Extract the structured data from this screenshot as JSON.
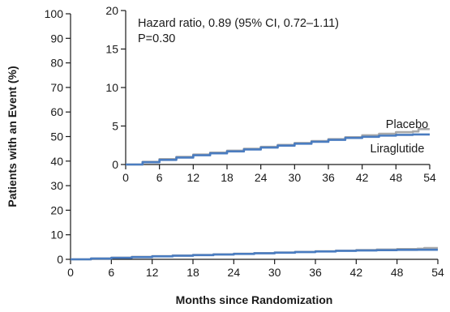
{
  "chart_data": [
    {
      "type": "line",
      "panel": "main",
      "xlabel": "Months since Randomization",
      "ylabel": "Patients with an Event (%)",
      "xlim": [
        0,
        54
      ],
      "ylim": [
        0,
        100
      ],
      "xticks": [
        0,
        6,
        12,
        18,
        24,
        30,
        36,
        42,
        48,
        54
      ],
      "yticks": [
        0,
        10,
        20,
        30,
        40,
        50,
        60,
        70,
        80,
        90,
        100
      ],
      "grid": false,
      "series": [
        {
          "color": "#a9a9a9",
          "x": [
            0,
            3,
            6,
            9,
            12,
            15,
            18,
            21,
            24,
            27,
            30,
            33,
            36,
            39,
            42,
            45,
            48,
            51,
            52,
            54
          ],
          "y": [
            0,
            0.35,
            0.7,
            1.0,
            1.3,
            1.55,
            1.8,
            2.05,
            2.3,
            2.55,
            2.8,
            3.05,
            3.3,
            3.55,
            3.8,
            4.0,
            4.2,
            4.3,
            4.6,
            4.6
          ]
        },
        {
          "color": "#4a7cc0",
          "x": [
            0,
            3,
            6,
            9,
            12,
            15,
            18,
            21,
            24,
            27,
            30,
            33,
            36,
            39,
            42,
            45,
            48,
            51,
            54
          ],
          "y": [
            0,
            0.3,
            0.6,
            0.9,
            1.2,
            1.45,
            1.7,
            1.95,
            2.2,
            2.45,
            2.7,
            2.95,
            3.2,
            3.45,
            3.6,
            3.75,
            3.85,
            3.9,
            3.9
          ]
        }
      ]
    },
    {
      "type": "line",
      "panel": "inset",
      "xlim": [
        0,
        54
      ],
      "ylim": [
        0,
        20
      ],
      "xticks": [
        0,
        6,
        12,
        18,
        24,
        30,
        36,
        42,
        48,
        54
      ],
      "yticks": [
        0,
        5,
        10,
        15,
        20
      ],
      "annotation_line1": "Hazard ratio, 0.89 (95% CI, 0.72–1.11)",
      "annotation_line2": "P=0.30",
      "series": [
        {
          "name": "Placebo",
          "color": "#a9a9a9",
          "x": [
            0,
            3,
            6,
            9,
            12,
            15,
            18,
            21,
            24,
            27,
            30,
            33,
            36,
            39,
            42,
            45,
            48,
            51,
            52,
            54
          ],
          "y": [
            0,
            0.35,
            0.7,
            1.0,
            1.3,
            1.55,
            1.8,
            2.05,
            2.3,
            2.55,
            2.8,
            3.05,
            3.3,
            3.55,
            3.8,
            4.0,
            4.2,
            4.3,
            4.6,
            4.6
          ]
        },
        {
          "name": "Liraglutide",
          "color": "#4a7cc0",
          "x": [
            0,
            3,
            6,
            9,
            12,
            15,
            18,
            21,
            24,
            27,
            30,
            33,
            36,
            39,
            42,
            45,
            48,
            51,
            54
          ],
          "y": [
            0,
            0.3,
            0.6,
            0.9,
            1.2,
            1.45,
            1.7,
            1.95,
            2.2,
            2.45,
            2.7,
            2.95,
            3.2,
            3.45,
            3.6,
            3.75,
            3.85,
            3.9,
            3.9
          ]
        }
      ]
    }
  ]
}
